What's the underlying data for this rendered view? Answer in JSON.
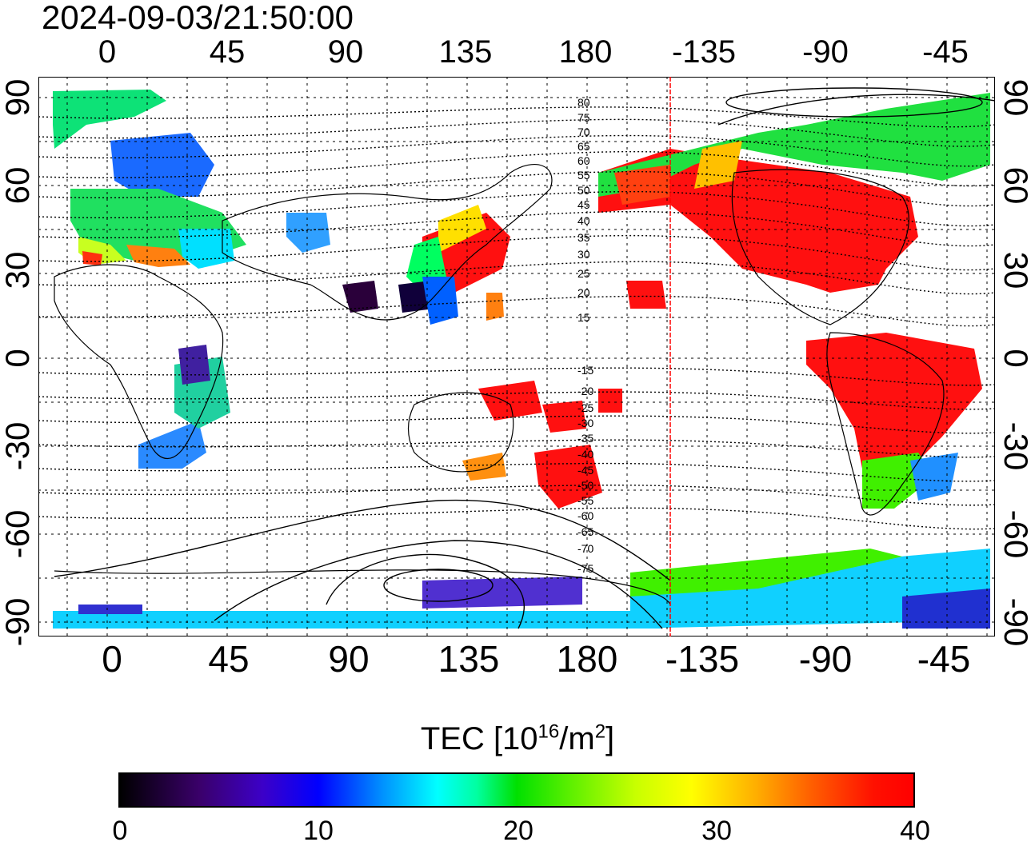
{
  "timestamp": "2024-09-03/21:50:00",
  "top_ticks": [
    "0",
    "45",
    "90",
    "135",
    "180",
    "-135",
    "-90",
    "-45"
  ],
  "bottom_ticks": [
    "0",
    "45",
    "90",
    "135",
    "180",
    "-135",
    "-90",
    "-45"
  ],
  "left_ticks": [
    "90",
    "60",
    "30",
    "0",
    "-30",
    "-60",
    "-90"
  ],
  "right_ticks": [
    "90",
    "60",
    "30",
    "0",
    "-30",
    "-60",
    "-90"
  ],
  "magnetic_lat_labels": [
    "80",
    "75",
    "70",
    "65",
    "60",
    "55",
    "50",
    "45",
    "40",
    "35",
    "30",
    "25",
    "20",
    "15",
    "-15",
    "-20",
    "-25",
    "-30",
    "-35",
    "-40",
    "-45",
    "-50",
    "-55",
    "-60",
    "-65",
    "-70",
    "-75"
  ],
  "colorbar": {
    "title_prefix": "TEC  [10",
    "title_exp1": "16",
    "title_mid": "/m",
    "title_exp2": "2",
    "title_suffix": "]",
    "ticks": [
      "0",
      "10",
      "20",
      "30",
      "40"
    ],
    "colors": {
      "low": "#000000",
      "mid_low": "#0000ff",
      "mid": "#00ffff",
      "mid_high": "#00e000",
      "high": "#ffff00",
      "max": "#ff0000"
    }
  },
  "map": {
    "lon_range": [
      -20,
      340
    ],
    "lat_range": [
      -90,
      90
    ],
    "terminator_color": "#ff0000",
    "terminator_lon": 212
  }
}
